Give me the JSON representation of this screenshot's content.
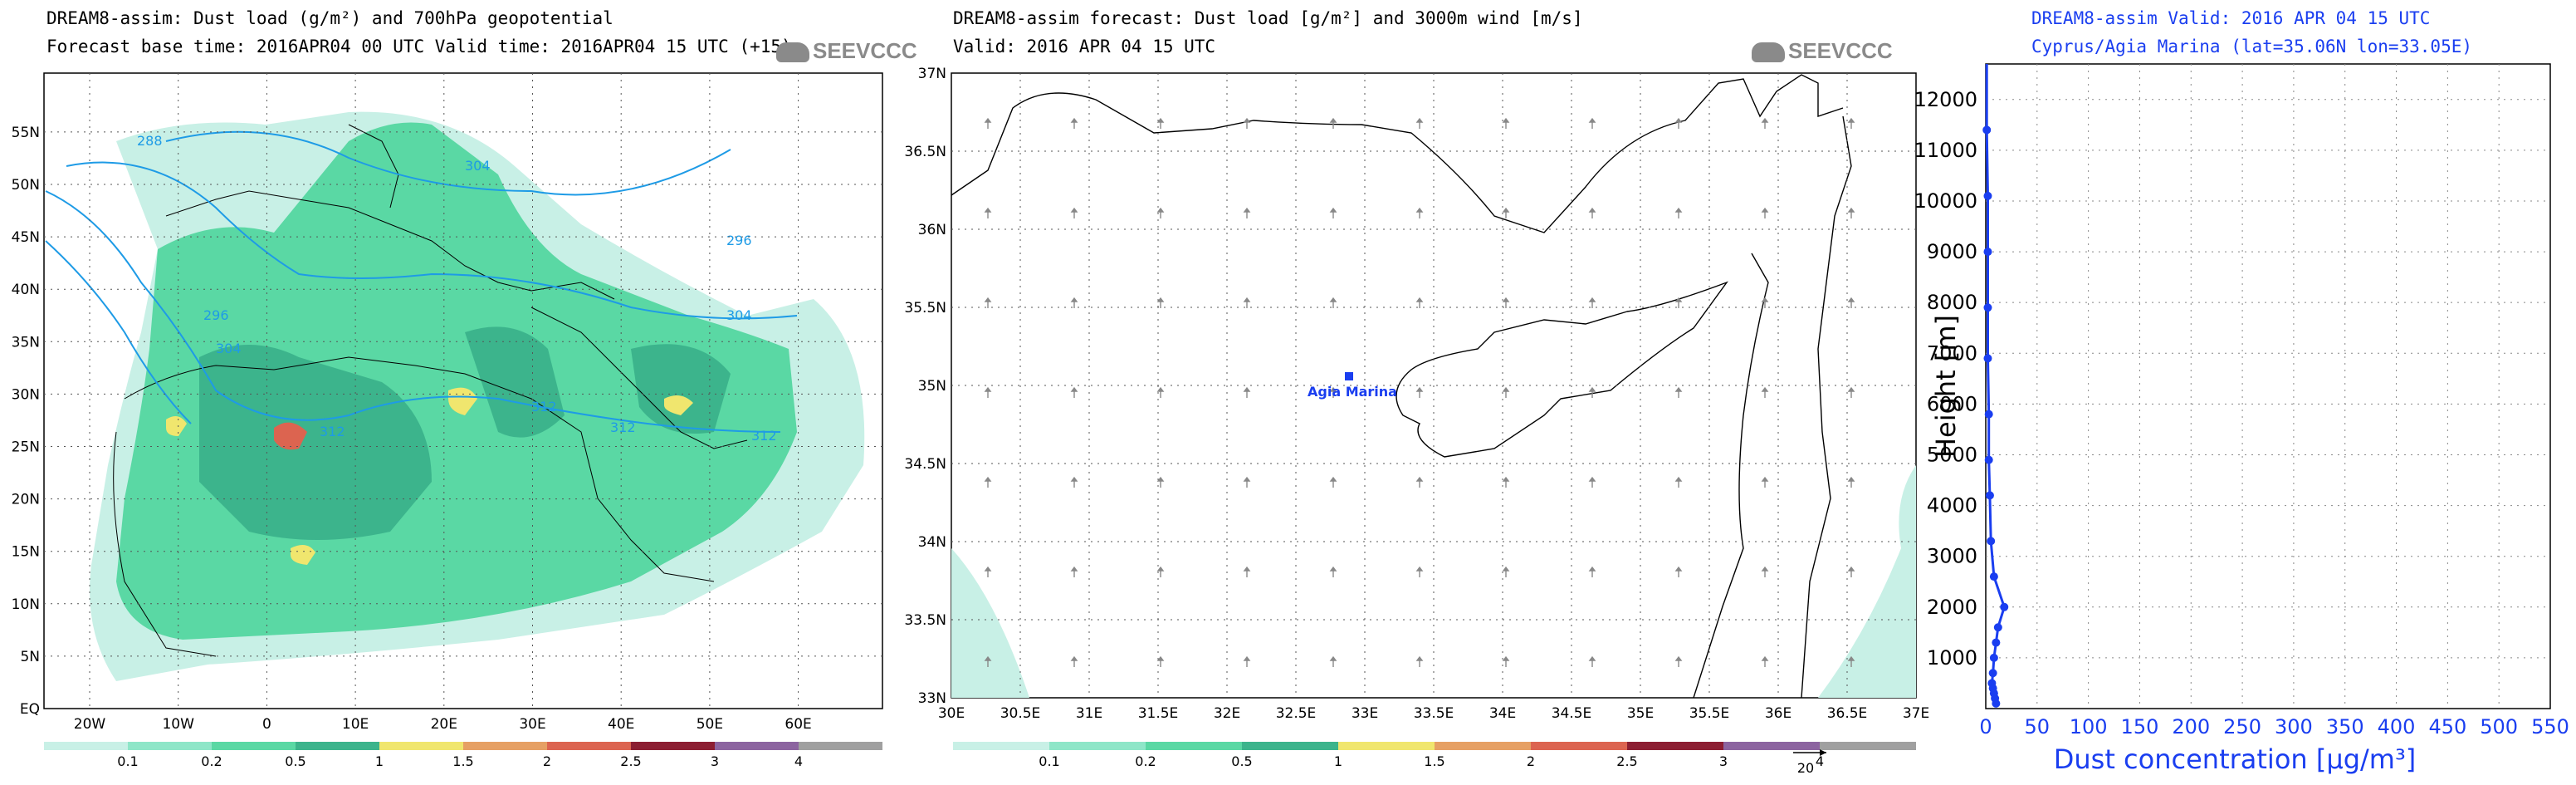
{
  "panel1": {
    "title1": "DREAM8-assim: Dust load (g/m²) and 700hPa geopotential",
    "title2": "Forecast base time: 2016APR04 00 UTC  Valid time: 2016APR04 15 UTC  (+15)",
    "logo": "SEEVCCC",
    "x_ticks": [
      "20W",
      "10W",
      "0",
      "10E",
      "20E",
      "30E",
      "40E",
      "50E",
      "60E"
    ],
    "y_ticks": [
      "EQ",
      "5N",
      "10N",
      "15N",
      "20N",
      "25N",
      "30N",
      "35N",
      "40N",
      "45N",
      "50N",
      "55N"
    ],
    "contour_labels": [
      "288",
      "296",
      "304",
      "304",
      "296",
      "304",
      "312",
      "312",
      "312",
      "312"
    ],
    "colorbar_labels": [
      "0.1",
      "0.2",
      "0.5",
      "1",
      "1.5",
      "2",
      "2.5",
      "3",
      "4"
    ],
    "colorbar_colors": [
      "#c8f0e6",
      "#8ee6c8",
      "#5ad8a4",
      "#3cb48c",
      "#f0e66e",
      "#e6a064",
      "#dc6450",
      "#8c1e32",
      "#8c64a0",
      "#a0a0a0"
    ]
  },
  "panel2": {
    "title1": "DREAM8-assim forecast: Dust load [g/m²] and 3000m wind [m/s]",
    "title2": "Valid: 2016 APR 04  15 UTC",
    "logo": "SEEVCCC",
    "x_ticks": [
      "30E",
      "30.5E",
      "31E",
      "31.5E",
      "32E",
      "32.5E",
      "33E",
      "33.5E",
      "34E",
      "34.5E",
      "35E",
      "35.5E",
      "36E",
      "36.5E",
      "37E"
    ],
    "y_ticks": [
      "33N",
      "33.5N",
      "34N",
      "34.5N",
      "35N",
      "35.5N",
      "36N",
      "36.5N",
      "37N"
    ],
    "station_label": "Agia Marina",
    "colorbar_labels": [
      "0.1",
      "0.2",
      "0.5",
      "1",
      "1.5",
      "2",
      "2.5",
      "3",
      "4"
    ],
    "wind_ref": "20"
  },
  "panel3": {
    "title1": "DREAM8-assim   Valid: 2016 APR 04   15 UTC",
    "title2": "Cyprus/Agia Marina (lat=35.06N lon=33.05E)",
    "accent": "#1a3ef0"
  },
  "chart_data": {
    "type": "line",
    "x": [
      10,
      9,
      8,
      7,
      6,
      7,
      8,
      10,
      12,
      18,
      8,
      5,
      4,
      3,
      3,
      2,
      2,
      2,
      2,
      1
    ],
    "y": [
      100,
      200,
      300,
      400,
      500,
      700,
      1000,
      1300,
      1600,
      2000,
      2600,
      3300,
      4200,
      4900,
      5800,
      6900,
      7900,
      9000,
      10100,
      11400
    ],
    "xlabel": "Dust concentration [µg/m³]",
    "ylabel": "Height [m]",
    "xlim": [
      0,
      550
    ],
    "ylim": [
      0,
      12700
    ],
    "x_ticks": [
      "0",
      "50",
      "100",
      "150",
      "200",
      "250",
      "300",
      "350",
      "400",
      "450",
      "500",
      "550"
    ],
    "y_ticks": [
      "1000",
      "2000",
      "3000",
      "4000",
      "5000",
      "6000",
      "7000",
      "8000",
      "9000",
      "10000",
      "11000",
      "12000"
    ],
    "grid": true
  }
}
